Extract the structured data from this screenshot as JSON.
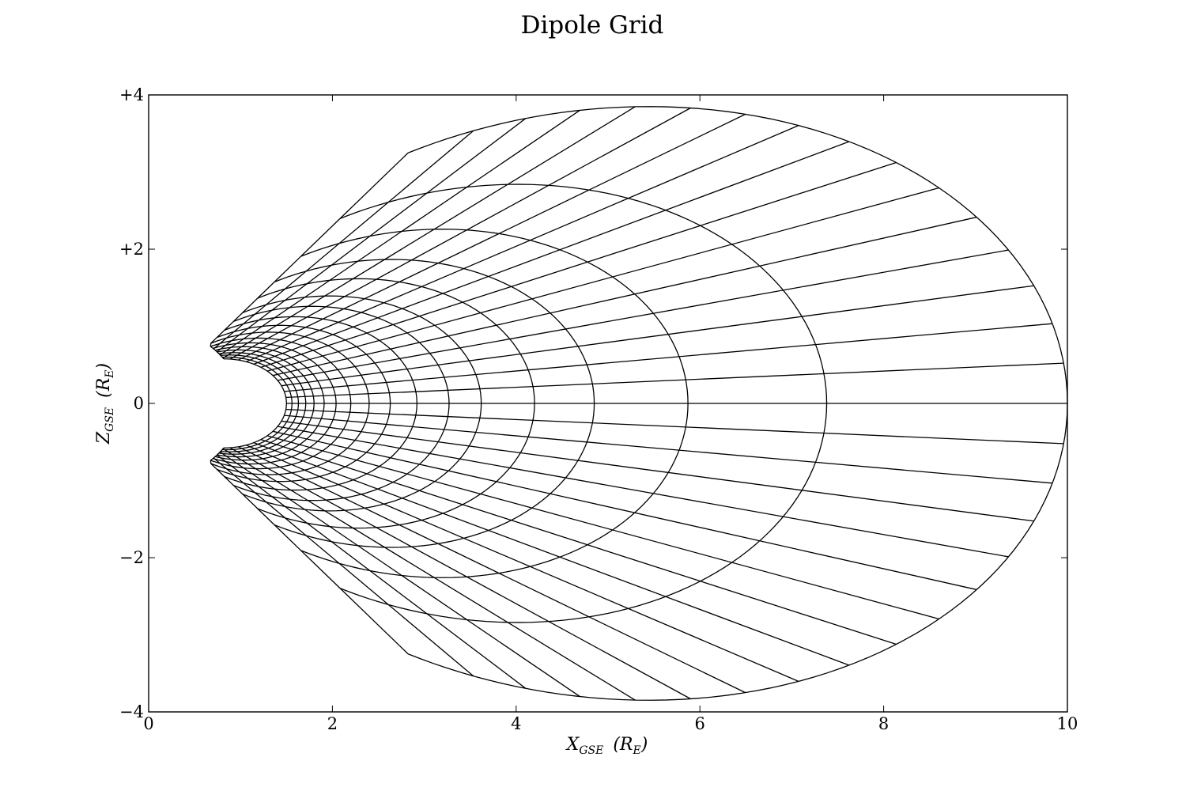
{
  "chart_data": {
    "type": "line",
    "title": "Dipole Grid",
    "xlabel": {
      "var": "X",
      "sub": "GSE",
      "unit_open": "(R",
      "unit_sub": "E",
      "unit_close": ")"
    },
    "ylabel": {
      "var": "Z",
      "sub": "GSE",
      "unit_open": "(R",
      "unit_sub": "E",
      "unit_close": ")"
    },
    "xlim": [
      0,
      10
    ],
    "ylim": [
      -4,
      4
    ],
    "x_ticks": [
      0,
      2,
      4,
      6,
      8,
      10
    ],
    "x_tick_labels": [
      "0",
      "2",
      "4",
      "6",
      "8",
      "10"
    ],
    "y_ticks": [
      -4,
      -2,
      0,
      2,
      4
    ],
    "y_tick_labels": [
      "−4",
      "−2",
      "0",
      "+2",
      "+4"
    ],
    "grid": false,
    "legend": "none",
    "line_color": "#000000",
    "field_lines": {
      "description_values": "dipole field lines r = L cos^2(lat), equatorial crossing L",
      "L": [
        1.5,
        1.56,
        1.63,
        1.71,
        1.8,
        1.91,
        2.04,
        2.2,
        2.4,
        2.63,
        2.92,
        3.27,
        3.62,
        4.2,
        4.85,
        5.87,
        7.38,
        10.0
      ],
      "inner_radius": 1.0,
      "outer_L": 10.0
    },
    "radial_lines": {
      "description_values": "constant-latitude lines (degrees)",
      "latitudes_deg": [
        -45,
        -42,
        -39,
        -36,
        -33,
        -30,
        -27,
        -24,
        -21,
        -18,
        -15,
        -12,
        -9,
        -6,
        -3,
        0,
        3,
        6,
        9,
        12,
        15,
        18,
        21,
        24,
        27,
        30,
        33,
        36,
        39,
        42,
        45
      ]
    },
    "boundary": {
      "inner_L": 1.5,
      "outer_L": 10.0,
      "max_latitude_deg": 49
    }
  }
}
